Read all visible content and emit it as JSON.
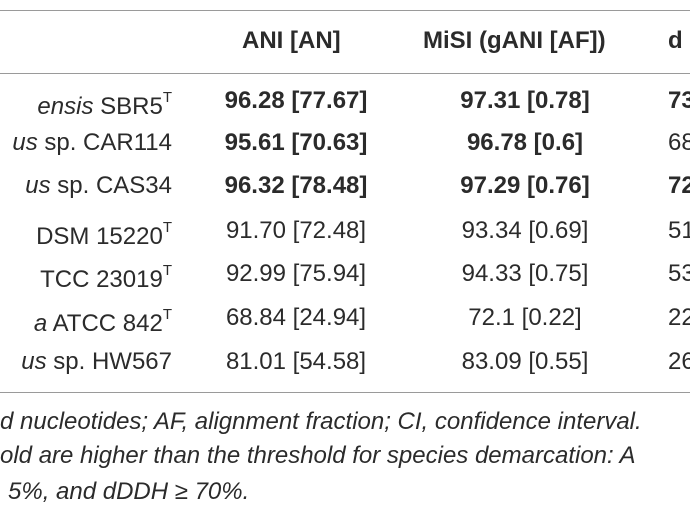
{
  "header": {
    "col_ani": "ANI [AN]",
    "col_misi": "MiSI (gANI [AF])",
    "col_dddh": "d"
  },
  "rows": [
    {
      "italic": "ensis",
      "plain": " SBR5",
      "sup": "T",
      "ani": "96.28 [77.67]",
      "misi": "97.31 [0.78]",
      "dddh": "73",
      "bold": true,
      "dddh_bold": true
    },
    {
      "italic": "us",
      "plain": " sp. CAR114",
      "sup": "",
      "ani": "95.61 [70.63]",
      "misi": "96.78 [0.6]",
      "dddh": "68",
      "bold": true,
      "dddh_bold": false
    },
    {
      "italic": "us",
      "plain": " sp. CAS34",
      "sup": "",
      "ani": "96.32 [78.48]",
      "misi": "97.29 [0.76]",
      "dddh": "72",
      "bold": true,
      "dddh_bold": true
    },
    {
      "italic": "",
      "plain": "DSM 15220",
      "sup": "T",
      "ani": "91.70 [72.48]",
      "misi": "93.34 [0.69]",
      "dddh": "51",
      "bold": false,
      "dddh_bold": false
    },
    {
      "italic": "",
      "plain": "TCC 23019",
      "sup": "T",
      "ani": "92.99 [75.94]",
      "misi": "94.33 [0.75]",
      "dddh": "53",
      "bold": false,
      "dddh_bold": false
    },
    {
      "italic": "a",
      "plain": " ATCC 842",
      "sup": "T",
      "ani": "68.84 [24.94]",
      "misi": "72.1 [0.22]",
      "dddh": "22",
      "bold": false,
      "dddh_bold": false
    },
    {
      "italic": "us",
      "plain": " sp. HW567",
      "sup": "",
      "ani": "81.01 [54.58]",
      "misi": "83.09 [0.55]",
      "dddh": "26",
      "bold": false,
      "dddh_bold": false
    }
  ],
  "footnote": {
    "line1": "d nucleotides; AF, alignment fraction; CI, confidence interval.",
    "line2": "old are higher than the threshold for species demarcation: A",
    "line3": "5%, and dDDH ≥ 70%."
  }
}
